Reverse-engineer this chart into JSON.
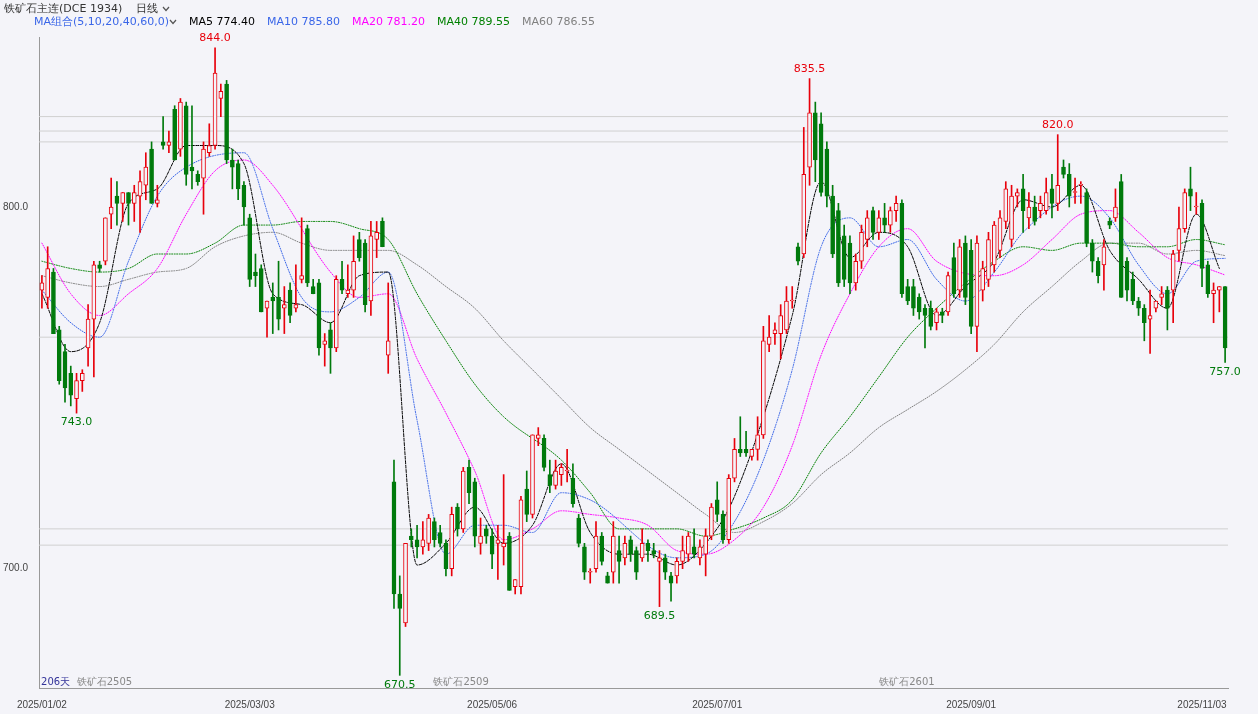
{
  "chart_data": {
    "type": "candlestick",
    "title": "铁矿石主连(DCE 1934)",
    "subtitle": "日线",
    "legend_title": "MA组合(5,10,20,40,60,0)",
    "categories": [
      "2025/01/02",
      null,
      null,
      null,
      null,
      null,
      null,
      null,
      null,
      null,
      null,
      null,
      null,
      null,
      null,
      null,
      null,
      null,
      null,
      null,
      null,
      null,
      null,
      null,
      null,
      null,
      null,
      null,
      null,
      null,
      null,
      null,
      null,
      null,
      null,
      null,
      "2025/03/03",
      null,
      null,
      null,
      null,
      null,
      null,
      null,
      null,
      null,
      null,
      null,
      null,
      null,
      null,
      null,
      null,
      null,
      null,
      null,
      null,
      null,
      null,
      null,
      null,
      null,
      null,
      null,
      null,
      null,
      null,
      null,
      null,
      null,
      null,
      null,
      null,
      null,
      null,
      null,
      null,
      null,
      "2025/05/06",
      null,
      null,
      null,
      null,
      null,
      null,
      null,
      null,
      null,
      null,
      null,
      null,
      null,
      null,
      null,
      null,
      null,
      null,
      null,
      null,
      null,
      null,
      null,
      null,
      null,
      null,
      null,
      null,
      null,
      null,
      null,
      null,
      null,
      null,
      null,
      null,
      null,
      null,
      "2025/07/01",
      null,
      null,
      null,
      null,
      null,
      null,
      null,
      null,
      null,
      null,
      null,
      null,
      null,
      null,
      null,
      null,
      null,
      null,
      null,
      null,
      null,
      null,
      null,
      null,
      null,
      null,
      null,
      null,
      null,
      null,
      null,
      null,
      null,
      null,
      null,
      null,
      null,
      null,
      null,
      null,
      null,
      null,
      null,
      "2025/09/01",
      null,
      null,
      null,
      null,
      null,
      null,
      null,
      null,
      null,
      null,
      null,
      null,
      null,
      null,
      null,
      null,
      null,
      null,
      null,
      null,
      null,
      null,
      null,
      null,
      null,
      null,
      null,
      null,
      null,
      null,
      null,
      null,
      null,
      null,
      null,
      null,
      null,
      null,
      null,
      "2025/11/03",
      null,
      null,
      null,
      null
    ],
    "ohlc": [
      [
        777,
        781,
        772,
        779
      ],
      [
        775,
        789,
        772,
        783
      ],
      [
        782,
        783,
        765,
        765
      ],
      [
        766,
        767,
        751,
        752
      ],
      [
        760,
        762,
        746,
        750
      ],
      [
        754,
        756,
        745,
        748
      ],
      [
        747,
        754,
        743,
        752
      ],
      [
        752,
        755,
        749,
        754
      ],
      [
        761,
        773,
        756,
        769
      ],
      [
        769,
        785,
        753,
        784
      ],
      [
        784,
        785,
        782,
        783
      ],
      [
        785,
        797,
        784,
        797
      ],
      [
        798,
        808,
        794,
        800
      ],
      [
        803,
        807,
        795,
        801
      ],
      [
        801,
        804,
        796,
        804
      ],
      [
        804,
        804,
        795,
        801
      ],
      [
        801,
        806,
        796,
        804
      ],
      [
        803,
        810,
        793,
        807
      ],
      [
        806,
        815,
        802,
        811
      ],
      [
        816,
        818,
        801,
        801
      ],
      [
        801,
        806,
        800,
        802
      ],
      [
        818,
        825,
        816,
        817
      ],
      [
        817,
        821,
        815,
        818
      ],
      [
        827,
        828,
        813,
        813
      ],
      [
        816,
        830,
        814,
        829
      ],
      [
        828,
        829,
        806,
        809
      ],
      [
        811,
        828,
        805,
        810
      ],
      [
        809,
        810,
        806,
        807
      ],
      [
        808,
        818,
        798,
        816
      ],
      [
        815,
        823,
        814,
        817
      ],
      [
        817,
        844,
        816,
        837
      ],
      [
        830,
        834,
        825,
        832
      ],
      [
        834,
        835,
        812,
        813
      ],
      [
        813,
        816,
        805,
        811
      ],
      [
        812,
        813,
        802,
        805
      ],
      [
        806,
        807,
        795,
        800
      ],
      [
        797,
        798,
        778,
        780
      ],
      [
        782,
        787,
        778,
        781
      ],
      [
        783,
        784,
        771,
        771
      ],
      [
        772,
        774,
        764,
        774
      ],
      [
        775,
        779,
        765,
        774
      ],
      [
        775,
        785,
        766,
        769
      ],
      [
        772,
        778,
        765,
        773
      ],
      [
        777,
        779,
        768,
        770
      ],
      [
        772,
        784,
        771,
        773
      ],
      [
        780,
        797,
        779,
        781
      ],
      [
        794,
        795,
        778,
        779
      ],
      [
        778,
        780,
        776,
        776
      ],
      [
        779,
        780,
        759,
        761
      ],
      [
        762,
        765,
        756,
        763
      ],
      [
        766,
        768,
        754,
        761
      ],
      [
        761,
        781,
        760,
        780
      ],
      [
        780,
        785,
        776,
        777
      ],
      [
        776,
        784,
        775,
        777
      ],
      [
        777,
        792,
        775,
        785
      ],
      [
        791,
        793,
        785,
        786
      ],
      [
        790,
        791,
        771,
        773
      ],
      [
        774,
        796,
        770,
        792
      ],
      [
        791,
        796,
        786,
        793
      ],
      [
        796,
        797,
        789,
        789
      ],
      [
        759,
        779,
        754,
        763
      ],
      [
        724,
        730,
        689,
        693
      ],
      [
        693,
        698,
        670.5,
        689
      ],
      [
        685,
        707,
        684,
        707
      ],
      [
        709,
        711,
        706,
        708
      ],
      [
        708,
        712,
        703,
        706
      ],
      [
        706,
        713,
        704,
        708
      ],
      [
        707,
        715,
        705,
        714
      ],
      [
        713,
        714,
        706,
        708
      ],
      [
        710,
        712,
        706,
        707
      ],
      [
        707,
        708,
        698,
        700
      ],
      [
        700,
        717,
        698,
        715
      ],
      [
        717,
        718,
        709,
        711
      ],
      [
        711,
        728,
        710,
        727
      ],
      [
        728,
        730,
        718,
        721
      ],
      [
        724,
        725,
        706,
        709
      ],
      [
        707,
        714,
        704,
        709
      ],
      [
        711,
        712,
        707,
        709
      ],
      [
        709,
        711,
        700,
        704
      ],
      [
        707,
        712,
        697,
        708
      ],
      [
        706,
        726,
        701,
        707
      ],
      [
        709,
        710,
        694,
        694
      ],
      [
        695,
        697,
        693,
        697
      ],
      [
        695,
        720,
        693,
        719
      ],
      [
        722,
        727,
        713,
        715
      ],
      [
        715,
        737,
        714,
        737
      ],
      [
        736,
        739,
        734,
        737
      ],
      [
        736,
        737,
        727,
        728
      ],
      [
        726,
        730,
        721,
        723
      ],
      [
        723,
        730,
        722,
        727
      ],
      [
        726,
        729,
        723,
        728
      ],
      [
        727,
        733,
        724,
        727
      ],
      [
        725,
        729,
        717,
        718
      ],
      [
        714,
        715,
        706,
        707
      ],
      [
        706,
        707,
        697,
        699
      ],
      [
        699,
        700,
        696,
        699
      ],
      [
        700,
        713,
        699,
        709
      ],
      [
        709,
        710,
        701,
        702
      ],
      [
        698,
        699,
        696,
        696
      ],
      [
        699,
        713,
        696,
        709
      ],
      [
        705,
        709,
        696,
        702
      ],
      [
        703,
        709,
        701,
        707
      ],
      [
        708,
        709,
        702,
        704
      ],
      [
        705,
        706,
        697,
        699
      ],
      [
        703,
        711,
        702,
        707
      ],
      [
        707,
        708,
        702,
        705
      ],
      [
        705,
        707,
        703,
        704
      ],
      [
        702,
        705,
        689.5,
        703
      ],
      [
        703,
        704,
        697,
        699
      ],
      [
        698,
        699,
        691,
        696
      ],
      [
        698,
        703,
        696,
        702
      ],
      [
        702,
        709,
        700,
        705
      ],
      [
        704,
        710,
        702,
        709
      ],
      [
        706,
        711,
        703,
        704
      ],
      [
        703,
        708,
        701,
        706
      ],
      [
        704,
        711,
        698,
        709
      ],
      [
        709,
        718,
        708,
        717
      ],
      [
        719,
        724,
        713,
        715
      ],
      [
        715,
        716,
        707,
        708
      ],
      [
        708,
        726,
        707,
        725
      ],
      [
        725,
        736,
        724,
        733
      ],
      [
        733,
        742,
        731,
        732
      ],
      [
        733,
        738,
        731,
        732
      ],
      [
        731,
        733,
        730,
        733
      ],
      [
        733,
        742,
        730,
        737
      ],
      [
        737,
        767,
        736,
        763
      ],
      [
        762,
        770,
        760,
        764
      ],
      [
        765,
        768,
        762,
        766
      ],
      [
        765,
        773,
        758,
        770
      ],
      [
        766,
        778,
        765,
        774
      ],
      [
        774,
        778,
        772,
        774
      ],
      [
        789,
        790,
        784,
        785
      ],
      [
        787,
        822,
        786,
        809
      ],
      [
        811,
        835.5,
        806,
        826
      ],
      [
        826,
        829,
        807,
        813
      ],
      [
        823,
        826,
        803,
        804
      ],
      [
        816,
        818,
        800,
        803
      ],
      [
        803,
        806,
        786,
        787
      ],
      [
        799,
        801,
        778,
        779
      ],
      [
        792,
        795,
        778,
        780
      ],
      [
        790,
        792,
        776,
        779
      ],
      [
        779,
        787,
        777,
        785
      ],
      [
        785,
        795,
        783,
        793
      ],
      [
        791,
        799,
        789,
        797
      ],
      [
        799,
        800,
        791,
        793
      ],
      [
        793,
        799,
        791,
        797
      ],
      [
        797,
        801,
        793,
        795
      ],
      [
        795,
        800,
        793,
        799
      ],
      [
        799,
        803,
        796,
        801
      ],
      [
        801,
        802,
        775,
        776
      ],
      [
        778,
        780,
        773,
        774
      ],
      [
        778,
        780,
        770,
        772
      ],
      [
        775,
        776,
        769,
        771
      ],
      [
        772,
        773,
        761,
        770
      ],
      [
        772,
        774,
        766,
        767
      ],
      [
        768,
        772,
        766,
        771
      ],
      [
        771,
        772,
        768,
        770
      ],
      [
        771,
        782,
        770,
        781
      ],
      [
        786,
        790,
        775,
        776
      ],
      [
        777,
        791,
        775,
        789
      ],
      [
        790,
        792,
        773,
        775
      ],
      [
        788,
        791,
        765,
        767
      ],
      [
        767,
        792,
        760,
        790
      ],
      [
        777,
        785,
        774,
        783
      ],
      [
        780,
        793,
        778,
        791
      ],
      [
        784,
        796,
        782,
        795
      ],
      [
        788,
        799,
        786,
        797
      ],
      [
        796,
        807,
        794,
        805
      ],
      [
        791,
        806,
        789,
        803
      ],
      [
        803,
        805,
        800,
        804
      ],
      [
        805,
        809,
        793,
        799
      ],
      [
        797,
        804,
        794,
        800
      ],
      [
        800,
        803,
        795,
        796
      ],
      [
        799,
        803,
        797,
        801
      ],
      [
        799,
        808,
        798,
        804
      ],
      [
        805,
        809,
        797,
        801
      ],
      [
        801,
        820,
        799,
        806
      ],
      [
        811,
        813,
        808,
        809
      ],
      [
        809,
        812,
        800,
        803
      ],
      [
        804,
        808,
        801,
        804
      ],
      [
        806,
        807,
        801,
        806
      ],
      [
        804,
        805,
        789,
        790
      ],
      [
        790,
        791,
        782,
        785
      ],
      [
        785,
        786,
        779,
        781
      ],
      [
        784,
        791,
        777,
        789
      ],
      [
        796,
        797,
        794,
        795
      ],
      [
        797,
        805,
        796,
        800
      ],
      [
        807,
        809,
        775,
        775
      ],
      [
        785,
        786,
        774,
        777
      ],
      [
        780,
        782,
        773,
        774
      ],
      [
        774,
        775,
        770,
        772
      ],
      [
        772,
        773,
        763,
        768
      ],
      [
        769,
        777,
        759.5,
        770
      ],
      [
        772,
        774,
        771,
        774
      ],
      [
        775,
        778,
        773,
        776
      ],
      [
        777,
        778,
        766,
        772
      ],
      [
        777,
        788,
        768,
        787
      ],
      [
        788,
        800,
        785,
        794
      ],
      [
        794,
        805,
        793,
        804
      ],
      [
        805,
        811,
        799,
        803
      ],
      [
        800,
        804,
        798,
        800
      ],
      [
        801,
        802,
        778,
        783
      ],
      [
        784,
        785,
        775,
        776
      ],
      [
        776,
        779,
        768,
        777
      ],
      [
        777,
        778,
        771,
        778
      ],
      [
        778,
        778,
        757,
        761
      ]
    ],
    "series": [
      {
        "name": "MA5 774.40",
        "type": "line",
        "color": "#000000",
        "line_style": "dashed",
        "values": [
          776,
          null,
          null,
          null,
          null,
          760,
          null,
          null,
          null,
          null,
          768,
          null,
          null,
          null,
          null,
          801,
          null,
          null,
          null,
          null,
          805,
          null,
          null,
          null,
          null,
          817,
          null,
          null,
          null,
          null,
          817,
          null,
          null,
          null,
          null,
          812,
          null,
          null,
          null,
          null,
          776,
          null,
          null,
          null,
          null,
          773,
          null,
          null,
          null,
          null,
          768,
          null,
          null,
          null,
          null,
          781,
          null,
          null,
          null,
          null,
          782,
          null,
          null,
          null,
          null,
          701,
          null,
          null,
          null,
          null,
          707,
          null,
          null,
          null,
          null,
          717,
          null,
          null,
          null,
          null,
          707,
          null,
          null,
          null,
          null,
          712,
          null,
          null,
          null,
          null,
          729,
          null,
          null,
          null,
          null,
          710,
          null,
          null,
          null,
          null,
          704,
          null,
          null,
          null,
          null,
          704,
          null,
          null,
          null,
          null,
          701,
          null,
          null,
          null,
          null,
          707,
          null,
          null,
          null,
          null,
          720,
          null,
          null,
          null,
          null,
          null,
          null,
          null,
          null,
          null,
          770,
          null,
          null,
          null,
          null,
          807,
          null,
          null,
          null,
          null,
          786,
          null,
          null,
          null,
          null,
          793,
          null,
          null,
          null,
          null,
          789,
          null,
          null,
          null,
          null,
          770,
          null,
          null,
          null,
          null,
          778,
          null,
          null,
          null,
          null,
          785,
          null,
          null,
          null,
          null,
          802,
          null,
          null,
          null,
          null,
          800,
          null,
          null,
          null,
          null,
          806,
          null,
          null,
          null,
          null,
          788,
          null,
          null,
          null,
          null,
          780,
          null,
          null,
          null,
          null,
          772,
          null,
          null,
          null,
          null,
          798,
          null,
          null,
          null,
          783,
          null
        ]
      },
      {
        "name": "MA10 785.80",
        "type": "line",
        "color": "#3a66e8",
        "line_style": "dotted",
        "values": [
          777,
          null,
          null,
          null,
          null,
          768,
          null,
          null,
          null,
          null,
          764,
          null,
          null,
          null,
          null,
          785,
          null,
          null,
          null,
          null,
          803,
          null,
          null,
          null,
          null,
          811,
          null,
          null,
          null,
          null,
          null,
          null,
          null,
          null,
          null,
          815,
          null,
          null,
          null,
          null,
          794,
          null,
          null,
          null,
          null,
          775,
          null,
          null,
          null,
          null,
          771,
          null,
          null,
          null,
          null,
          775,
          null,
          null,
          null,
          null,
          782,
          null,
          null,
          null,
          null,
          741,
          null,
          null,
          null,
          null,
          704,
          null,
          null,
          null,
          null,
          712,
          null,
          null,
          null,
          null,
          712,
          null,
          null,
          null,
          null,
          710,
          null,
          null,
          null,
          null,
          721,
          null,
          null,
          null,
          null,
          719,
          null,
          null,
          null,
          null,
          null,
          null,
          null,
          null,
          null,
          null,
          null,
          null,
          null,
          null,
          703,
          null,
          null,
          null,
          null,
          704,
          null,
          null,
          null,
          null,
          713,
          null,
          null,
          null,
          null,
          730,
          null,
          null,
          null,
          null,
          755,
          null,
          null,
          null,
          null,
          789,
          null,
          null,
          null,
          null,
          797,
          null,
          null,
          null,
          null,
          789,
          null,
          null,
          null,
          null,
          791,
          null,
          null,
          null,
          null,
          780,
          null,
          null,
          null,
          null,
          774,
          null,
          null,
          null,
          null,
          782,
          null,
          null,
          null,
          null,
          793,
          null,
          null,
          null,
          null,
          null,
          null,
          null,
          null,
          null,
          803,
          null,
          null,
          null,
          null,
          797,
          null,
          null,
          null,
          null,
          784,
          null,
          null,
          null,
          null,
          776,
          null,
          null,
          null,
          null,
          785,
          null,
          null,
          null,
          null,
          785.8
        ]
      },
      {
        "name": "MA20 781.20",
        "type": "line",
        "color": "#ff00ff",
        "line_style": "dotted",
        "values": [
          790,
          null,
          null,
          null,
          null,
          776,
          null,
          null,
          null,
          null,
          770,
          null,
          null,
          null,
          null,
          776,
          null,
          null,
          null,
          null,
          783,
          null,
          null,
          null,
          null,
          798,
          null,
          null,
          null,
          null,
          810,
          null,
          null,
          null,
          null,
          813,
          null,
          null,
          null,
          null,
          806,
          null,
          null,
          null,
          null,
          null,
          null,
          null,
          null,
          null,
          782,
          null,
          null,
          null,
          null,
          775,
          null,
          null,
          null,
          null,
          776,
          null,
          null,
          null,
          null,
          758,
          null,
          null,
          null,
          null,
          743,
          null,
          null,
          null,
          null,
          727,
          null,
          null,
          null,
          null,
          708,
          null,
          null,
          null,
          null,
          711,
          null,
          null,
          null,
          null,
          716,
          null,
          null,
          null,
          null,
          715,
          null,
          null,
          null,
          null,
          714,
          null,
          null,
          null,
          null,
          712,
          null,
          null,
          null,
          null,
          705,
          null,
          null,
          null,
          null,
          704,
          null,
          null,
          null,
          null,
          708,
          null,
          null,
          null,
          null,
          717,
          null,
          null,
          null,
          null,
          734,
          null,
          null,
          null,
          null,
          759,
          null,
          null,
          null,
          null,
          776,
          null,
          null,
          null,
          null,
          789,
          null,
          null,
          null,
          null,
          794,
          null,
          null,
          null,
          null,
          785,
          null,
          null,
          null,
          null,
          null,
          null,
          null,
          null,
          null,
          781,
          null,
          null,
          null,
          null,
          784,
          null,
          null,
          null,
          null,
          791,
          null,
          null,
          null,
          null,
          798,
          null,
          null,
          null,
          null,
          799,
          null,
          null,
          null,
          null,
          793,
          null,
          null,
          null,
          null,
          786,
          null,
          null,
          null,
          null,
          784,
          null,
          null,
          null,
          null,
          781.2
        ]
      },
      {
        "name": "MA40 789.55",
        "type": "line",
        "color": "#008000",
        "line_style": "dotted",
        "values": [
          785,
          null,
          null,
          null,
          null,
          783,
          null,
          null,
          null,
          null,
          782,
          null,
          null,
          null,
          null,
          783,
          null,
          null,
          null,
          null,
          787,
          null,
          null,
          null,
          null,
          787,
          null,
          null,
          null,
          null,
          790,
          null,
          null,
          null,
          null,
          795,
          null,
          null,
          null,
          null,
          795,
          null,
          null,
          null,
          null,
          796,
          null,
          null,
          null,
          null,
          796,
          null,
          null,
          null,
          null,
          794,
          null,
          null,
          null,
          null,
          791,
          null,
          null,
          null,
          null,
          776,
          null,
          null,
          null,
          null,
          763,
          null,
          null,
          null,
          null,
          751,
          null,
          null,
          null,
          null,
          742,
          null,
          null,
          null,
          null,
          null,
          null,
          null,
          null,
          null,
          730,
          null,
          null,
          null,
          null,
          721,
          null,
          null,
          null,
          null,
          711,
          null,
          null,
          null,
          null,
          711,
          null,
          null,
          null,
          null,
          711,
          null,
          null,
          null,
          null,
          709,
          null,
          null,
          null,
          null,
          711,
          null,
          null,
          null,
          null,
          714,
          null,
          null,
          null,
          null,
          719,
          null,
          null,
          null,
          null,
          732,
          null,
          null,
          null,
          null,
          742,
          null,
          null,
          null,
          null,
          753,
          null,
          null,
          null,
          null,
          764,
          null,
          null,
          null,
          null,
          772,
          null,
          null,
          null,
          null,
          779,
          null,
          null,
          null,
          null,
          785,
          null,
          null,
          null,
          null,
          789,
          null,
          null,
          null,
          null,
          788,
          null,
          null,
          null,
          null,
          790,
          null,
          null,
          null,
          null,
          790,
          null,
          null,
          null,
          null,
          789,
          null,
          null,
          null,
          null,
          789,
          null,
          null,
          null,
          null,
          791,
          null,
          null,
          null,
          null,
          789.55
        ]
      },
      {
        "name": "MA60 786.55",
        "type": "line",
        "color": "#808080",
        "line_style": "dotted",
        "values": [
          781,
          null,
          null,
          null,
          null,
          779,
          null,
          null,
          null,
          null,
          778,
          null,
          null,
          null,
          null,
          780,
          null,
          null,
          null,
          null,
          782,
          null,
          null,
          null,
          null,
          783,
          null,
          null,
          null,
          null,
          789,
          null,
          null,
          null,
          null,
          792,
          null,
          null,
          null,
          null,
          793,
          null,
          null,
          null,
          null,
          790,
          null,
          null,
          null,
          null,
          788,
          null,
          null,
          null,
          null,
          788,
          null,
          null,
          null,
          null,
          788,
          null,
          null,
          null,
          null,
          784,
          null,
          null,
          null,
          null,
          778,
          null,
          null,
          null,
          null,
          772,
          null,
          null,
          null,
          null,
          763,
          null,
          null,
          null,
          null,
          755,
          null,
          null,
          null,
          null,
          747,
          null,
          null,
          null,
          null,
          739,
          null,
          null,
          null,
          null,
          733,
          null,
          null,
          null,
          null,
          727,
          null,
          null,
          null,
          null,
          721,
          null,
          null,
          null,
          null,
          715,
          null,
          null,
          null,
          null,
          710,
          null,
          null,
          null,
          null,
          713,
          null,
          null,
          null,
          null,
          718,
          null,
          null,
          null,
          null,
          726,
          null,
          null,
          null,
          null,
          732,
          null,
          null,
          null,
          null,
          739,
          null,
          null,
          null,
          null,
          744,
          null,
          null,
          null,
          null,
          749,
          null,
          null,
          null,
          null,
          755,
          null,
          null,
          null,
          null,
          762,
          null,
          null,
          null,
          null,
          771,
          null,
          null,
          null,
          null,
          778,
          null,
          null,
          null,
          null,
          785,
          null,
          null,
          null,
          null,
          790,
          null,
          null,
          null,
          null,
          790,
          null,
          null,
          null,
          null,
          787,
          null,
          null,
          null,
          null,
          788,
          null,
          null,
          null,
          null,
          786.55
        ]
      }
    ],
    "ylim": [
      667,
      847
    ],
    "yticks": [
      {
        "value": 700,
        "label": "700.0"
      },
      {
        "value": 800,
        "label": "800.0"
      }
    ],
    "grid": false,
    "legend": "top left",
    "marker": "none",
    "ref_lines": [
      {
        "axis": "y",
        "value": 825,
        "color": "#d0d0d0"
      },
      {
        "axis": "y",
        "value": 821,
        "color": "#d0d0d0"
      },
      {
        "axis": "y",
        "value": 818,
        "color": "#d0d0d0"
      },
      {
        "axis": "y",
        "value": 764,
        "color": "#d0d0d0"
      },
      {
        "axis": "y",
        "value": 711,
        "color": "#d0d0d0"
      },
      {
        "axis": "y",
        "value": 706.5,
        "color": "#d0d0d0"
      }
    ],
    "annotations": [
      {
        "text": "844.0",
        "y": 844
      },
      {
        "text": "743.0",
        "y": 743
      },
      {
        "text": "670.5",
        "y": 670.5
      },
      {
        "text": "689.5",
        "y": 689.5
      },
      {
        "text": "835.5",
        "y": 835.5
      },
      {
        "text": "820.0",
        "y": 820
      },
      {
        "text": "757.0",
        "y": 757
      },
      "206天",
      "铁矿石2505",
      "铁矿石2509",
      "铁矿石2601"
    ]
  }
}
